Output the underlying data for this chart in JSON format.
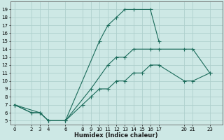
{
  "xlabel": "Humidex (Indice chaleur)",
  "background_color": "#cde8e5",
  "line_color": "#1a6b5a",
  "grid_color": "#aed0cc",
  "xlim": [
    -0.5,
    24.5
  ],
  "ylim": [
    4.5,
    20.0
  ],
  "xticks": [
    0,
    2,
    3,
    4,
    6,
    8,
    9,
    10,
    11,
    12,
    13,
    14,
    15,
    16,
    17,
    20,
    21,
    23
  ],
  "yticks": [
    5,
    6,
    7,
    8,
    9,
    10,
    11,
    12,
    13,
    14,
    15,
    16,
    17,
    18,
    19
  ],
  "curve1": {
    "x": [
      0,
      2,
      3,
      4,
      6,
      10,
      11,
      12,
      13,
      14,
      16,
      17
    ],
    "y": [
      7,
      6,
      6,
      5,
      5,
      15,
      17,
      18,
      19,
      19,
      19,
      15
    ]
  },
  "curve2": {
    "x": [
      0,
      3,
      4,
      6,
      9,
      11,
      12,
      13,
      14,
      16,
      17,
      20,
      21,
      23
    ],
    "y": [
      7,
      6,
      5,
      5,
      9,
      12,
      13,
      13,
      14,
      14,
      14,
      14,
      14,
      11
    ]
  },
  "curve3": {
    "x": [
      0,
      2,
      3,
      4,
      6,
      8,
      9,
      10,
      11,
      12,
      13,
      14,
      15,
      16,
      17,
      20,
      21,
      23
    ],
    "y": [
      7,
      6,
      6,
      5,
      5,
      7,
      8,
      9,
      9,
      10,
      10,
      11,
      11,
      12,
      12,
      10,
      10,
      11
    ]
  }
}
